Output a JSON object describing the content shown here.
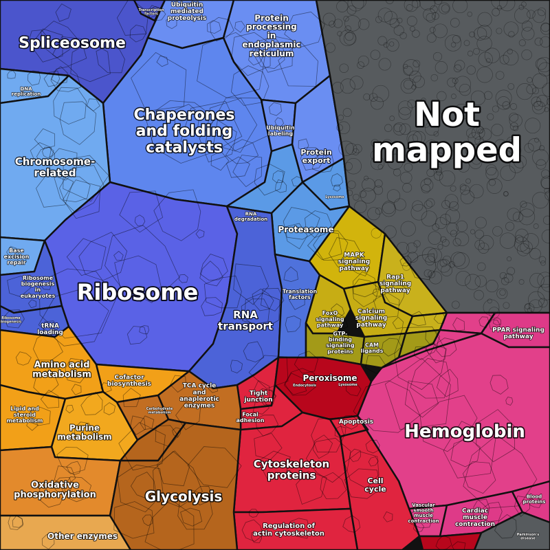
{
  "colors": {
    "spliceosome": "#4b55cc",
    "chaperones": "#5e86ee",
    "protein_processing": "#6a8ef2",
    "chromosome": "#70aaf0",
    "ribosome": "#5a62e6",
    "rna_transport": "#4c63d8",
    "translation": "#4f72dc",
    "proteasome": "#5b9ae6",
    "not_mapped": "#575b5e",
    "mapk": "#d2b40c",
    "rap1": "#c9b11c",
    "calcium": "#c7ad14",
    "gtp": "#a39a18",
    "hemoglobin": "#e2408a",
    "ppar": "#de3a88",
    "peroxisome": "#b8061c",
    "cytoskeleton": "#e0243f",
    "amino": "#f2a018",
    "purine": "#f2a81e",
    "glycolysis": "#b5651d",
    "tca": "#c26e22",
    "oxidative": "#e38a2c",
    "other_enzymes": "#e8a850"
  },
  "labels": {
    "spliceosome": [
      "Spliceosome"
    ],
    "chaperones": [
      "Chaperones",
      "and folding",
      "catalysts"
    ],
    "protein_processing": [
      "Protein",
      "processing",
      "in",
      "endoplasmic",
      "reticulum"
    ],
    "ubiquitin_proteolysis": [
      "Ubiquitin",
      "mediated",
      "proteolysis"
    ],
    "transcription": [
      "Transcription",
      "factors"
    ],
    "dna_replication": [
      "DNA",
      "replication"
    ],
    "chromosome": [
      "Chromosome-",
      "related"
    ],
    "ubiquitin_labeling": [
      "Ubiquitin",
      "labeling"
    ],
    "protein_export": [
      "Protein",
      "export"
    ],
    "not_mapped": [
      "Not",
      "mapped"
    ],
    "lysosome_small": [
      "Lysosome"
    ],
    "rna_degradation": [
      "RNA",
      "degradation"
    ],
    "proteasome": [
      "Proteasome"
    ],
    "ribosome": [
      "Ribosome"
    ],
    "base_excision": [
      "Base",
      "excision",
      "repair"
    ],
    "ribosome_biogenesis": [
      "Ribosome",
      "biogenesis",
      "in",
      "eukaryotes"
    ],
    "ribosome_biogenesis_small": [
      "Ribosome",
      "biogenesis"
    ],
    "trna": [
      "tRNA",
      "loading"
    ],
    "rna_transport": [
      "RNA",
      "transport"
    ],
    "translation": [
      "Translation",
      "factors"
    ],
    "mapk": [
      "MAPK",
      "signaling",
      "pathway"
    ],
    "rap1": [
      "Rap1",
      "signaling",
      "pathway"
    ],
    "foxo": [
      "FoxO",
      "signaling",
      "pathway"
    ],
    "calcium": [
      "Calcium",
      "signaling",
      "pathway"
    ],
    "gtp": [
      "GTP-",
      "binding",
      "signaling",
      "proteins"
    ],
    "cam": [
      "CAM",
      "ligands"
    ],
    "ppar": [
      "PPAR signaling",
      "pathway"
    ],
    "peroxisome": [
      "Peroxisome"
    ],
    "tight_junction": [
      "Tight",
      "junction"
    ],
    "endocytosis": [
      "Endocytosis"
    ],
    "lysosome": [
      "Lysosome"
    ],
    "focal_adhesion": [
      "Focal",
      "adhesion"
    ],
    "apoptosis": [
      "Apoptosis"
    ],
    "cytoskeleton": [
      "Cytoskeleton",
      "proteins"
    ],
    "cell_cycle": [
      "Cell",
      "cycle"
    ],
    "regulation_actin": [
      "Regulation of",
      "actin cytoskeleton"
    ],
    "hemoglobin": [
      "Hemoglobin"
    ],
    "vascular": [
      "Vascular",
      "smooth",
      "muscle",
      "contraction"
    ],
    "cardiac": [
      "Cardiac",
      "muscle",
      "contraction"
    ],
    "blood_proteins": [
      "Blood",
      "proteins"
    ],
    "parkinsons": [
      "Parkinson's",
      "disease"
    ],
    "amino": [
      "Amino acid",
      "metabolism"
    ],
    "cofactor": [
      "Cofactor",
      "biosynthesis"
    ],
    "lipid": [
      "Lipid and",
      "steroid",
      "metabolism"
    ],
    "purine": [
      "Purine",
      "metabolism"
    ],
    "tca": [
      "TCA cycle",
      "and",
      "anaplerotic",
      "enzymes"
    ],
    "carbohydrate": [
      "Carbohydrate",
      "metabolism"
    ],
    "oxidative": [
      "Oxidative",
      "phosphorylation"
    ],
    "glycolysis": [
      "Glycolysis"
    ],
    "other_enzymes": [
      "Other enzymes"
    ]
  }
}
